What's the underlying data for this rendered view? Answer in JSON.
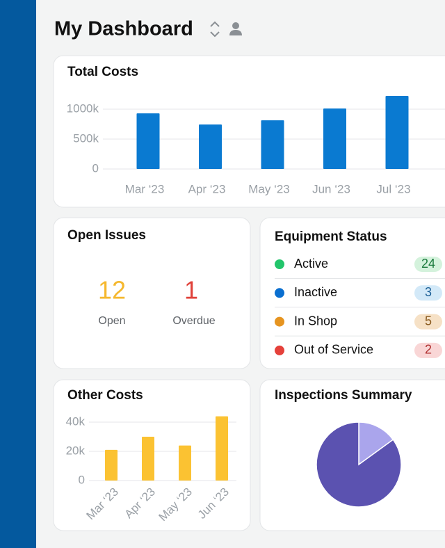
{
  "header": {
    "title": "My Dashboard"
  },
  "chart_data": [
    {
      "type": "bar",
      "title": "Total Costs",
      "categories": [
        "Mar ‘23",
        "Apr ‘23",
        "May ‘23",
        "Jun ‘23",
        "Jul ‘23"
      ],
      "values": [
        930000,
        744000,
        814000,
        1012000,
        1221000
      ],
      "color": "#0a7ad1",
      "ylim": [
        0,
        1250000
      ],
      "yticks": [
        0,
        {
          "value": 500000,
          "label": "500k"
        },
        {
          "value": 1000000,
          "label": "1000k"
        }
      ],
      "grid": true
    },
    {
      "type": "bar",
      "title": "Other Costs",
      "categories": [
        "Mar ‘23",
        "Apr ‘23",
        "May ‘23",
        "Jun ‘23"
      ],
      "values": [
        21000,
        30000,
        24000,
        44000
      ],
      "color": "#fbc232",
      "ylim": [
        0,
        46000
      ],
      "yticks": [
        0,
        {
          "value": 20000,
          "label": "20k"
        },
        {
          "value": 40000,
          "label": "40k"
        }
      ],
      "grid": true
    },
    {
      "type": "pie",
      "title": "Inspections Summary",
      "values": [
        15,
        85
      ],
      "colors": [
        "#aaa5ec",
        "#5b52b0"
      ]
    }
  ],
  "open_issues": {
    "title": "Open Issues",
    "items": [
      {
        "value": 12,
        "label": "Open",
        "color": "#f5b82e"
      },
      {
        "value": 1,
        "label": "Overdue",
        "color": "#e0413a"
      }
    ]
  },
  "equipment_status": {
    "title": "Equipment Status",
    "items": [
      {
        "label": "Active",
        "count": 24,
        "color": "#22c56b"
      },
      {
        "label": "Inactive",
        "count": 3,
        "color": "#0a6fd0"
      },
      {
        "label": "In Shop",
        "count": 5,
        "color": "#e69420"
      },
      {
        "label": "Out of Service",
        "count": 2,
        "color": "#e5413a"
      }
    ]
  }
}
